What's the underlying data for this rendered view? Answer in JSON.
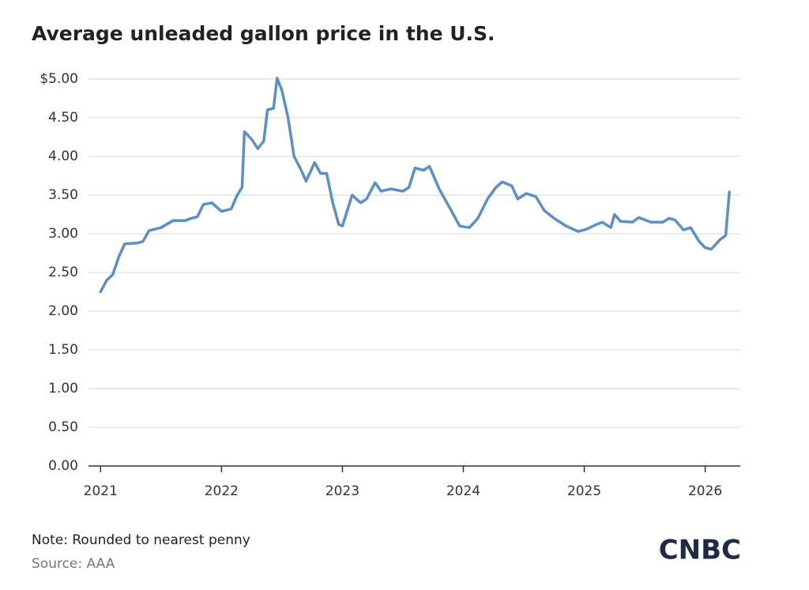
{
  "chart_data": {
    "type": "line",
    "title": "Average unleaded gallon price in the U.S.",
    "note": "Note: Rounded to nearest penny",
    "source": "Source: AAA",
    "brand": "CNBC",
    "x": [
      2021.0,
      2021.05,
      2021.1,
      2021.15,
      2021.2,
      2021.3,
      2021.35,
      2021.4,
      2021.5,
      2021.6,
      2021.7,
      2021.75,
      2021.8,
      2021.85,
      2021.92,
      2022.0,
      2022.08,
      2022.13,
      2022.17,
      2022.19,
      2022.25,
      2022.3,
      2022.35,
      2022.38,
      2022.43,
      2022.46,
      2022.5,
      2022.55,
      2022.6,
      2022.65,
      2022.7,
      2022.77,
      2022.82,
      2022.87,
      2022.92,
      2022.97,
      2023.0,
      2023.05,
      2023.08,
      2023.15,
      2023.2,
      2023.27,
      2023.32,
      2023.4,
      2023.5,
      2023.55,
      2023.6,
      2023.67,
      2023.72,
      2023.8,
      2023.9,
      2023.97,
      2024.05,
      2024.12,
      2024.2,
      2024.27,
      2024.32,
      2024.4,
      2024.45,
      2024.52,
      2024.6,
      2024.67,
      2024.75,
      2024.85,
      2024.95,
      2025.02,
      2025.1,
      2025.15,
      2025.22,
      2025.25,
      2025.3,
      2025.4,
      2025.45,
      2025.55,
      2025.65,
      2025.7,
      2025.75,
      2025.82,
      2025.88,
      2025.95,
      2026.0,
      2026.05,
      2026.12,
      2026.17,
      2026.2
    ],
    "series": [
      {
        "color": "#5b8fc7",
        "values": [
          2.25,
          2.4,
          2.47,
          2.7,
          2.87,
          2.88,
          2.9,
          3.04,
          3.08,
          3.17,
          3.17,
          3.2,
          3.22,
          3.38,
          3.4,
          3.29,
          3.32,
          3.5,
          3.6,
          4.32,
          4.22,
          4.1,
          4.2,
          4.6,
          4.62,
          5.01,
          4.85,
          4.5,
          4.0,
          3.85,
          3.68,
          3.92,
          3.78,
          3.78,
          3.4,
          3.12,
          3.1,
          3.35,
          3.5,
          3.4,
          3.45,
          3.66,
          3.55,
          3.58,
          3.55,
          3.6,
          3.85,
          3.82,
          3.87,
          3.58,
          3.3,
          3.1,
          3.08,
          3.2,
          3.45,
          3.6,
          3.67,
          3.62,
          3.45,
          3.52,
          3.48,
          3.3,
          3.2,
          3.1,
          3.03,
          3.06,
          3.12,
          3.15,
          3.08,
          3.25,
          3.16,
          3.15,
          3.21,
          3.15,
          3.15,
          3.2,
          3.18,
          3.05,
          3.08,
          2.9,
          2.82,
          2.8,
          2.92,
          2.98,
          3.54
        ]
      }
    ],
    "xlim": [
      2020.9,
      2026.29
    ],
    "xticks": [
      2021,
      2022,
      2023,
      2024,
      2025,
      2026
    ],
    "ylim": [
      0,
      5
    ],
    "yticks": [
      {
        "value": 0,
        "label": "0.00"
      },
      {
        "value": 0.5,
        "label": "0.50"
      },
      {
        "value": 1,
        "label": "1.00"
      },
      {
        "value": 1.5,
        "label": "1.50"
      },
      {
        "value": 2,
        "label": "2.00"
      },
      {
        "value": 2.5,
        "label": "2.50"
      },
      {
        "value": 3,
        "label": "3.00"
      },
      {
        "value": 3.5,
        "label": "3.50"
      },
      {
        "value": 4,
        "label": "4.00"
      },
      {
        "value": 4.5,
        "label": "4.50"
      },
      {
        "value": 5,
        "label": "$5.00"
      }
    ],
    "grid": true
  }
}
